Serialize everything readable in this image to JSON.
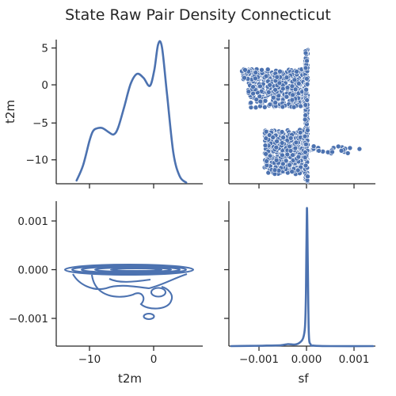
{
  "title": "State Raw Pair Density Connecticut",
  "chart_data": [
    {
      "panel": "t2m vs t2m",
      "type": "line",
      "kind": "kde",
      "variable": "t2m",
      "xlim": [
        -15.2,
        7.8
      ],
      "x": [
        -12.0,
        -11.0,
        -10.0,
        -9.5,
        -9.0,
        -8.0,
        -7.0,
        -6.2,
        -5.5,
        -4.5,
        -3.5,
        -2.5,
        -1.5,
        -0.5,
        0.2,
        0.8,
        1.4,
        2.2,
        3.2,
        4.2,
        5.2
      ],
      "density": [
        0.008,
        0.045,
        0.105,
        0.128,
        0.136,
        0.138,
        0.128,
        0.122,
        0.138,
        0.192,
        0.248,
        0.272,
        0.262,
        0.242,
        0.282,
        0.345,
        0.338,
        0.22,
        0.075,
        0.018,
        0.003
      ]
    },
    {
      "panel": "t2m vs sf",
      "type": "scatter",
      "xlabel": "",
      "ylabel": "t2m",
      "xlim": [
        -0.00165,
        0.00145
      ],
      "ylim": [
        -13.3,
        6.2
      ],
      "yticks": [
        5,
        0,
        -5,
        -10
      ],
      "ytick_labels": [
        "5",
        "0",
        "−5",
        "−10"
      ],
      "approximate_points": "dense cluster of x in [-0.00138, 0.00002] and y in [-12.8, 5.2]; points concentrate near x = 0 with a vertical band from y = -13 to y = 5; upper cluster y in [-3, 2], lower cluster y in [-12, -6]; sparse outliers to x = 0.00115 near y = -8.5"
    },
    {
      "panel": "sf vs t2m",
      "type": "contour",
      "kind": "bivariate kde",
      "xlabel": "t2m",
      "ylabel": "",
      "xlim": [
        -15.2,
        7.8
      ],
      "ylim": [
        -0.00157,
        0.00141
      ],
      "xticks": [
        -10,
        0
      ],
      "xtick_labels": [
        "−10",
        "0"
      ],
      "yticks": [
        0.001,
        0.0,
        -0.001
      ],
      "ytick_labels": [
        "0.001",
        "0.000",
        "−0.001"
      ],
      "description": "nested elliptical contours centered near (-3, 0.0000) spanning t2m -15 to 6; lobe extending to sf ≈ -0.0003 around t2m -9 to 2; small closed contours near (1, -0.0005) and (-1, -0.00097)"
    },
    {
      "panel": "sf vs sf",
      "type": "line",
      "kind": "kde",
      "variable": "sf",
      "xlabel": "sf",
      "xlim": [
        -0.00165,
        0.00145
      ],
      "xticks": [
        -0.001,
        0.0,
        0.001
      ],
      "xtick_labels": [
        "−0.001",
        "0.000",
        "0.001"
      ],
      "x": [
        -0.0016,
        -0.0012,
        -0.0009,
        -0.00055,
        -0.0004,
        -0.00025,
        -0.00015,
        -8e-05,
        -4e-05,
        -2e-05,
        0.0,
        2e-05,
        4e-05,
        8e-05,
        0.00015,
        0.0005,
        0.0014
      ],
      "density": [
        0.0,
        3.0,
        5.0,
        10.0,
        22.0,
        18.0,
        40.0,
        90.0,
        220.0,
        600.0,
        1560.0,
        900.0,
        150.0,
        20.0,
        5.0,
        0.0,
        0.0
      ]
    }
  ]
}
